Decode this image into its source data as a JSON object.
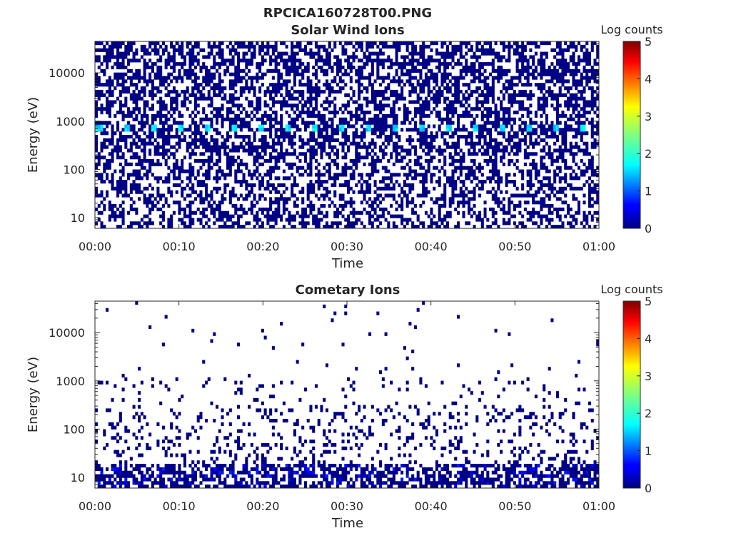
{
  "figure_title": "RPCICA160728T00.PNG",
  "chart_data": [
    {
      "type": "heatmap",
      "title": "Solar Wind Ions",
      "xlabel": "Time",
      "ylabel": "Energy (eV)",
      "x_ticks": [
        "00:00",
        "00:10",
        "00:20",
        "00:30",
        "00:40",
        "00:50",
        "01:00"
      ],
      "xlim": [
        "00:00",
        "01:00"
      ],
      "y_scale": "log",
      "y_ticks": [
        "10",
        "100",
        "1000",
        "10000"
      ],
      "ylim": [
        6,
        45000
      ],
      "colorbar": {
        "label": "Log counts",
        "range": [
          0,
          5
        ],
        "ticks": [
          "0",
          "1",
          "2",
          "3",
          "4",
          "5"
        ],
        "colormap": "jet"
      },
      "description_of_features": {
        "sparse_background_level": 0,
        "peak_energy_eV": 700,
        "peak_log_counts": 2,
        "peak_period_minutes": 3.2,
        "dense_low_energy_below_eV": 20
      }
    },
    {
      "type": "heatmap",
      "title": "Cometary Ions",
      "xlabel": "Time",
      "ylabel": "Energy (eV)",
      "x_ticks": [
        "00:00",
        "00:10",
        "00:20",
        "00:30",
        "00:40",
        "00:50",
        "01:00"
      ],
      "xlim": [
        "00:00",
        "01:00"
      ],
      "y_scale": "log",
      "y_ticks": [
        "10",
        "100",
        "1000",
        "10000"
      ],
      "ylim": [
        6,
        45000
      ],
      "colorbar": {
        "label": "Log counts",
        "range": [
          0,
          5
        ],
        "ticks": [
          "0",
          "1",
          "2",
          "3",
          "4",
          "5"
        ],
        "colormap": "jet"
      },
      "description_of_features": {
        "sparse_background_level": 0,
        "band_energy_eV": 700,
        "dense_low_energy_below_eV": 20,
        "peak_log_counts": 0.8
      }
    }
  ]
}
